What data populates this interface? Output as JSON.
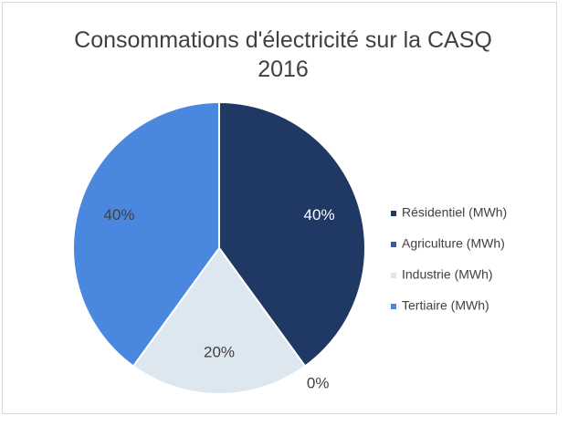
{
  "chart_data": {
    "type": "pie",
    "title": "Consommations d'électricité sur la CASQ 2016",
    "categories": [
      "Résidentiel (MWh)",
      "Agriculture (MWh)",
      "Industrie (MWh)",
      "Tertiaire (MWh)"
    ],
    "values": [
      40,
      0,
      20,
      40
    ],
    "value_labels": [
      "40%",
      "0%",
      "20%",
      "40%"
    ],
    "colors": [
      "#1f3864",
      "#3b5a9a",
      "#dde7f0",
      "#4a88e0"
    ],
    "legend": "right"
  }
}
